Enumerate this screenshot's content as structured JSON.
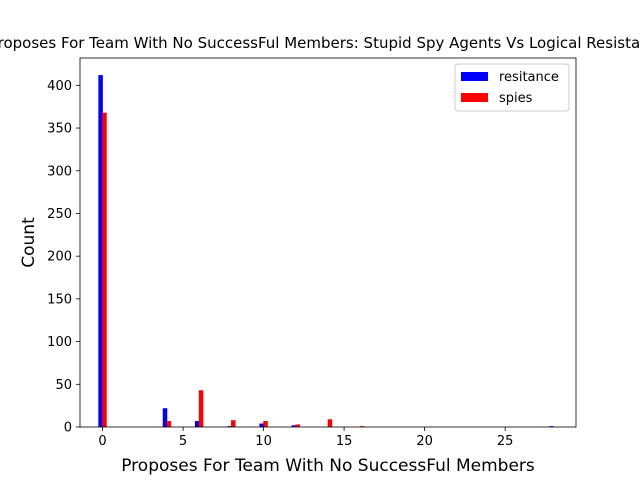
{
  "chart_data": {
    "type": "bar",
    "title": "Proposes For Team With No SuccessFul Members: Stupid Spy Agents Vs Logical Resistance",
    "xlabel": "Proposes For Team With No SuccessFul Members",
    "ylabel": "Count",
    "xlim": [
      -1.4,
      29.4
    ],
    "ylim": [
      0,
      432
    ],
    "xticks": [
      0,
      5,
      10,
      15,
      20,
      25
    ],
    "yticks": [
      0,
      50,
      100,
      150,
      200,
      250,
      300,
      350,
      400
    ],
    "grid": false,
    "legend_position": "top-right",
    "series": [
      {
        "name": "resitance",
        "color": "#0000ff",
        "x": [
          0,
          4,
          6,
          8,
          10,
          12,
          28
        ],
        "values": [
          412,
          22,
          7,
          1,
          4,
          2,
          1
        ]
      },
      {
        "name": "spies",
        "color": "#ff0000",
        "x": [
          0,
          4,
          6,
          8,
          10,
          12,
          14,
          16
        ],
        "values": [
          368,
          7,
          43,
          8,
          7,
          3,
          9,
          1
        ]
      }
    ]
  }
}
